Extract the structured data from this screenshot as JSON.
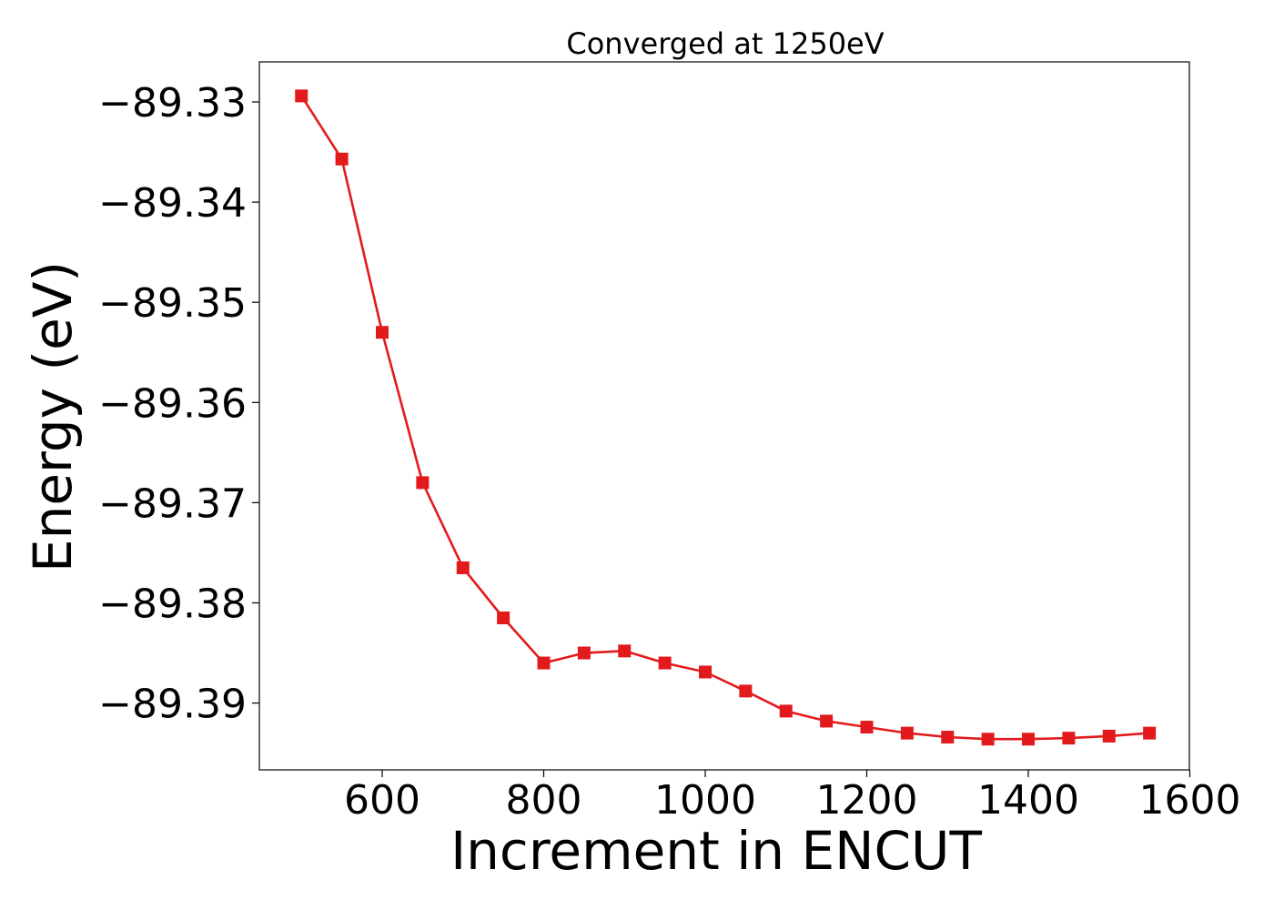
{
  "chart_data": {
    "type": "line",
    "title": "Converged at 1250eV",
    "xlabel": "Increment in ENCUT",
    "ylabel": "Energy (eV)",
    "xlim": [
      450,
      1610
    ],
    "ylim": [
      -89.397,
      -89.326
    ],
    "xticks": [
      600,
      800,
      1000,
      1200,
      1400,
      1600
    ],
    "xtick_labels": [
      "600",
      "800",
      "1000",
      "1200",
      "1400",
      "1600"
    ],
    "yticks": [
      -89.33,
      -89.34,
      -89.35,
      -89.36,
      -89.37,
      -89.38,
      -89.39
    ],
    "ytick_labels": [
      "−89.33",
      "−89.34",
      "−89.35",
      "−89.36",
      "−89.37",
      "−89.38",
      "−89.39"
    ],
    "grid": false,
    "marker": "square",
    "color": "#e31a1c",
    "x": [
      500,
      550,
      600,
      650,
      700,
      750,
      800,
      850,
      900,
      950,
      1000,
      1050,
      1100,
      1150,
      1200,
      1250,
      1300,
      1350,
      1400,
      1450,
      1500,
      1550
    ],
    "y": [
      -89.3294,
      -89.3357,
      -89.353,
      -89.368,
      -89.3765,
      -89.3815,
      -89.386,
      -89.385,
      -89.3848,
      -89.386,
      -89.3869,
      -89.3888,
      -89.3908,
      -89.3918,
      -89.3924,
      -89.393,
      -89.3934,
      -89.3936,
      -89.3936,
      -89.3935,
      -89.3933,
      -89.393
    ]
  }
}
